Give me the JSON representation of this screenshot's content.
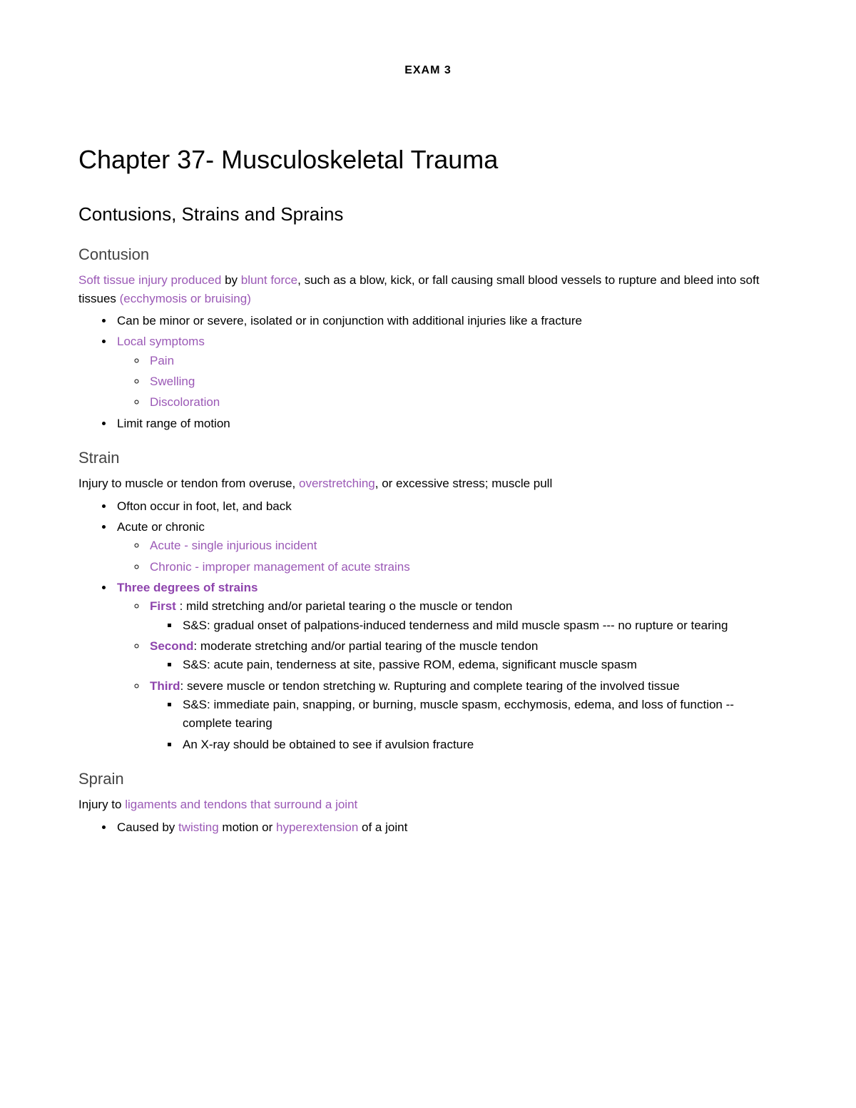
{
  "header": {
    "exam_label": "EXAM 3"
  },
  "chapter": {
    "title": "Chapter 37- Musculoskeletal Trauma"
  },
  "section1": {
    "title": "Contusions, Strains and Sprains"
  },
  "contusion": {
    "heading": "Contusion",
    "intro_p1": "Soft tissue injury produced",
    "intro_p2": " by ",
    "intro_p3": "blunt force",
    "intro_p4": ", such as a blow, kick, or fall causing small blood vessels to rupture and bleed into soft tissues ",
    "intro_p5": "(ecchymosis or bruising)",
    "bullet1": "Can be minor or severe, isolated or in conjunction with additional injuries like a fracture",
    "bullet2": "Local symptoms",
    "sub1": "Pain",
    "sub2": "Swelling",
    "sub3": "Discoloration",
    "bullet3": "Limit range of motion"
  },
  "strain": {
    "heading": "Strain",
    "intro_p1": "Injury to muscle or tendon from overuse, ",
    "intro_p2": "overstretching",
    "intro_p3": ", or excessive stress; muscle pull",
    "bullet1": "Ofton occur in foot, let, and back",
    "bullet2": "Acute or chronic",
    "sub_acute": "Acute - single injurious incident",
    "sub_chronic": "Chronic - improper management of acute strains",
    "bullet3": "Three degrees of strains",
    "first_label": "First",
    "first_text": " : mild stretching and/or parietal tearing o the muscle or tendon",
    "first_ss": "S&S: gradual onset of palpations-induced tenderness and mild muscle spasm --- no rupture or tearing",
    "second_label": "Second",
    "second_text": ": moderate stretching and/or partial tearing of the muscle tendon",
    "second_ss": "S&S: acute pain, tenderness at site, passive ROM, edema, significant muscle spasm",
    "third_label": "Third",
    "third_text": ": severe muscle or tendon stretching w. Rupturing and  complete tearing of the involved tissue",
    "third_ss": "S&S: immediate pain, snapping, or burning, muscle spasm, ecchymosis, edema, and loss of function --complete tearing",
    "third_xray": "An X-ray should be obtained to see if avulsion fracture"
  },
  "sprain": {
    "heading": "Sprain",
    "intro_p1": "Injury to ",
    "intro_p2": "ligaments and tendons that surround a joint",
    "bullet1_p1": "Caused by ",
    "bullet1_p2": "twisting",
    "bullet1_p3": " motion or ",
    "bullet1_p4": "hyperextension",
    "bullet1_p5": " of a joint"
  },
  "colors": {
    "purple": "#9b59b6",
    "purple_bold": "#8e44ad",
    "black": "#000000",
    "gray": "#444444",
    "background": "#ffffff"
  },
  "typography": {
    "exam_header_size": 16,
    "chapter_title_size": 36,
    "section_title_size": 26,
    "subsection_title_size": 22,
    "body_size": 17,
    "font_family": "Arial"
  }
}
